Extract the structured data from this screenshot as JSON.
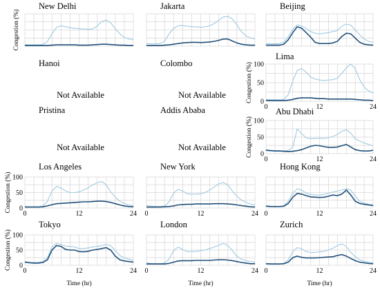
{
  "colors": {
    "series_light": "#9ecae1",
    "series_dark": "#1f4e79",
    "grid": "#d4d4d4"
  },
  "axis_labels": {
    "y": "Congestion (%)",
    "x": "Time (hr)"
  },
  "not_available_text": "Not Available",
  "chart_data": [
    {
      "type": "line",
      "title": "New Delhi",
      "xlim": [
        0,
        24
      ],
      "ylim": [
        0,
        100
      ],
      "grid": true,
      "x_ticks": [
        0,
        12,
        24
      ],
      "y_ticks": [
        0,
        50,
        100
      ],
      "show_x_ticks": false,
      "show_y_ticks": false,
      "ylabel": "Congestion (%)",
      "x": [
        0,
        1,
        2,
        3,
        4,
        5,
        6,
        7,
        8,
        9,
        10,
        11,
        12,
        13,
        14,
        15,
        16,
        17,
        18,
        19,
        20,
        21,
        22,
        23,
        24
      ],
      "series": [
        {
          "values": [
            5,
            4,
            4,
            4,
            5,
            15,
            38,
            58,
            63,
            60,
            57,
            55,
            54,
            53,
            52,
            53,
            62,
            76,
            80,
            72,
            54,
            38,
            27,
            22,
            20
          ]
        },
        {
          "values": [
            2,
            2,
            2,
            2,
            2,
            2,
            3,
            4,
            4,
            4,
            4,
            4,
            3,
            3,
            3,
            4,
            5,
            6,
            6,
            5,
            4,
            3,
            3,
            2,
            2
          ]
        }
      ]
    },
    {
      "type": "line",
      "title": "Jakarta",
      "xlim": [
        0,
        24
      ],
      "ylim": [
        0,
        100
      ],
      "grid": true,
      "x_ticks": [
        0,
        12,
        24
      ],
      "y_ticks": [
        0,
        50,
        100
      ],
      "show_x_ticks": false,
      "show_y_ticks": false,
      "ylabel": "",
      "x": [
        0,
        1,
        2,
        3,
        4,
        5,
        6,
        7,
        8,
        9,
        10,
        11,
        12,
        13,
        14,
        15,
        16,
        17,
        18,
        19,
        20,
        21,
        22,
        23,
        24
      ],
      "series": [
        {
          "values": [
            8,
            7,
            7,
            8,
            15,
            38,
            55,
            63,
            64,
            62,
            60,
            60,
            58,
            60,
            63,
            70,
            80,
            90,
            92,
            84,
            66,
            45,
            32,
            25,
            23
          ]
        },
        {
          "values": [
            2,
            2,
            2,
            2,
            3,
            4,
            6,
            8,
            10,
            11,
            12,
            12,
            11,
            12,
            13,
            15,
            18,
            22,
            22,
            16,
            10,
            6,
            4,
            3,
            3
          ]
        }
      ]
    },
    {
      "type": "line",
      "title": "Beijing",
      "xlim": [
        0,
        24
      ],
      "ylim": [
        0,
        100
      ],
      "grid": true,
      "x_ticks": [
        0,
        12,
        24
      ],
      "y_ticks": [
        0,
        50,
        100
      ],
      "show_x_ticks": false,
      "show_y_ticks": false,
      "ylabel": "",
      "x": [
        0,
        1,
        2,
        3,
        4,
        5,
        6,
        7,
        8,
        9,
        10,
        11,
        12,
        13,
        14,
        15,
        16,
        17,
        18,
        19,
        20,
        21,
        22,
        23,
        24
      ],
      "series": [
        {
          "values": [
            8,
            7,
            7,
            8,
            12,
            30,
            52,
            66,
            62,
            55,
            45,
            40,
            38,
            40,
            42,
            45,
            48,
            62,
            68,
            65,
            50,
            35,
            22,
            15,
            12
          ]
        },
        {
          "values": [
            3,
            3,
            3,
            3,
            6,
            20,
            42,
            60,
            55,
            42,
            28,
            12,
            8,
            8,
            8,
            10,
            15,
            30,
            40,
            38,
            25,
            12,
            6,
            4,
            3
          ]
        }
      ]
    },
    {
      "type": "line",
      "title": "Hanoi",
      "status": "Not Available"
    },
    {
      "type": "line",
      "title": "Colombo",
      "status": "Not Available"
    },
    {
      "type": "line",
      "title": "Lima",
      "xlim": [
        0,
        24
      ],
      "ylim": [
        0,
        100
      ],
      "grid": true,
      "x_ticks": [
        0,
        12,
        24
      ],
      "y_ticks": [
        0,
        50,
        100
      ],
      "show_x_ticks": true,
      "show_y_ticks": true,
      "ylabel": "Congestion (%)",
      "x": [
        0,
        1,
        2,
        3,
        4,
        5,
        6,
        7,
        8,
        9,
        10,
        11,
        12,
        13,
        14,
        15,
        16,
        17,
        18,
        19,
        20,
        21,
        22,
        23,
        24
      ],
      "series": [
        {
          "values": [
            5,
            4,
            4,
            4,
            5,
            18,
            55,
            83,
            88,
            78,
            65,
            60,
            57,
            56,
            57,
            58,
            62,
            75,
            90,
            100,
            88,
            58,
            38,
            28,
            22
          ]
        },
        {
          "values": [
            2,
            2,
            2,
            2,
            2,
            3,
            5,
            8,
            9,
            9,
            9,
            8,
            7,
            7,
            6,
            6,
            6,
            6,
            6,
            6,
            5,
            4,
            3,
            3,
            2
          ]
        }
      ]
    },
    {
      "type": "line",
      "title": "Pristina",
      "status": "Not Available"
    },
    {
      "type": "line",
      "title": "Addis Ababa",
      "status": "Not Available"
    },
    {
      "type": "line",
      "title": "Abu Dhabi",
      "xlim": [
        0,
        24
      ],
      "ylim": [
        0,
        100
      ],
      "grid": true,
      "x_ticks": [
        0,
        12,
        24
      ],
      "y_ticks": [
        0,
        50,
        100
      ],
      "show_x_ticks": true,
      "show_y_ticks": true,
      "ylabel": "Congestion (%)",
      "x": [
        0,
        1,
        2,
        3,
        4,
        5,
        6,
        7,
        8,
        9,
        10,
        11,
        12,
        13,
        14,
        15,
        16,
        17,
        18,
        19,
        20,
        21,
        22,
        23,
        24
      ],
      "series": [
        {
          "values": [
            12,
            10,
            9,
            9,
            8,
            10,
            20,
            75,
            60,
            48,
            45,
            46,
            47,
            46,
            48,
            52,
            58,
            68,
            72,
            62,
            45,
            38,
            32,
            28,
            24
          ]
        },
        {
          "values": [
            10,
            9,
            8,
            8,
            7,
            6,
            7,
            9,
            12,
            17,
            22,
            25,
            24,
            21,
            19,
            19,
            20,
            24,
            28,
            20,
            12,
            9,
            8,
            8,
            10
          ]
        }
      ]
    },
    {
      "type": "line",
      "title": "Los Angeles",
      "xlim": [
        0,
        24
      ],
      "ylim": [
        0,
        100
      ],
      "grid": true,
      "x_ticks": [
        0,
        12,
        24
      ],
      "y_ticks": [
        0,
        50,
        100
      ],
      "show_x_ticks": true,
      "show_y_ticks": true,
      "ylabel": "Congestion (%)",
      "x": [
        0,
        1,
        2,
        3,
        4,
        5,
        6,
        7,
        8,
        9,
        10,
        11,
        12,
        13,
        14,
        15,
        16,
        17,
        18,
        19,
        20,
        21,
        22,
        23,
        24
      ],
      "series": [
        {
          "values": [
            5,
            4,
            4,
            4,
            6,
            22,
            55,
            70,
            65,
            55,
            50,
            50,
            52,
            58,
            65,
            75,
            82,
            86,
            75,
            52,
            35,
            22,
            15,
            10,
            8
          ]
        },
        {
          "values": [
            3,
            3,
            3,
            3,
            4,
            7,
            11,
            14,
            15,
            16,
            17,
            18,
            19,
            20,
            20,
            21,
            22,
            22,
            21,
            18,
            14,
            10,
            7,
            5,
            4
          ]
        }
      ]
    },
    {
      "type": "line",
      "title": "New York",
      "xlim": [
        0,
        24
      ],
      "ylim": [
        0,
        100
      ],
      "grid": true,
      "x_ticks": [
        0,
        12,
        24
      ],
      "y_ticks": [
        0,
        50,
        100
      ],
      "show_x_ticks": true,
      "show_y_ticks": false,
      "ylabel": "",
      "x": [
        0,
        1,
        2,
        3,
        4,
        5,
        6,
        7,
        8,
        9,
        10,
        11,
        12,
        13,
        14,
        15,
        16,
        17,
        18,
        19,
        20,
        21,
        22,
        23,
        24
      ],
      "series": [
        {
          "values": [
            8,
            6,
            5,
            5,
            6,
            20,
            48,
            60,
            55,
            46,
            45,
            45,
            46,
            50,
            58,
            68,
            78,
            82,
            75,
            55,
            38,
            26,
            18,
            13,
            10
          ]
        },
        {
          "values": [
            3,
            3,
            3,
            3,
            4,
            5,
            7,
            10,
            11,
            12,
            12,
            13,
            13,
            13,
            13,
            14,
            14,
            14,
            13,
            12,
            10,
            8,
            6,
            4,
            3
          ]
        }
      ]
    },
    {
      "type": "line",
      "title": "Hong Kong",
      "xlim": [
        0,
        24
      ],
      "ylim": [
        0,
        100
      ],
      "grid": true,
      "x_ticks": [
        0,
        12,
        24
      ],
      "y_ticks": [
        0,
        50,
        100
      ],
      "show_x_ticks": true,
      "show_y_ticks": false,
      "ylabel": "",
      "x": [
        0,
        1,
        2,
        3,
        4,
        5,
        6,
        7,
        8,
        9,
        10,
        11,
        12,
        13,
        14,
        15,
        16,
        17,
        18,
        19,
        20,
        21,
        22,
        23,
        24
      ],
      "series": [
        {
          "values": [
            8,
            6,
            5,
            5,
            7,
            22,
            48,
            62,
            58,
            48,
            44,
            42,
            42,
            44,
            48,
            52,
            55,
            58,
            62,
            58,
            38,
            22,
            16,
            12,
            10
          ]
        },
        {
          "values": [
            6,
            5,
            5,
            5,
            6,
            15,
            35,
            47,
            45,
            40,
            36,
            35,
            34,
            35,
            38,
            42,
            40,
            45,
            58,
            42,
            22,
            15,
            12,
            10,
            8
          ]
        }
      ]
    },
    {
      "type": "line",
      "title": "Tokyo",
      "xlim": [
        0,
        24
      ],
      "ylim": [
        0,
        100
      ],
      "grid": true,
      "x_ticks": [
        0,
        12,
        24
      ],
      "y_ticks": [
        0,
        50,
        100
      ],
      "show_x_ticks": true,
      "show_y_ticks": true,
      "ylabel": "Congestion (%)",
      "x": [
        0,
        1,
        2,
        3,
        4,
        5,
        6,
        7,
        8,
        9,
        10,
        11,
        12,
        13,
        14,
        15,
        16,
        17,
        18,
        19,
        20,
        21,
        22,
        23,
        24
      ],
      "series": [
        {
          "values": [
            12,
            10,
            9,
            9,
            12,
            25,
            60,
            72,
            68,
            63,
            62,
            60,
            55,
            55,
            57,
            60,
            62,
            65,
            68,
            65,
            48,
            32,
            24,
            20,
            16
          ]
        },
        {
          "values": [
            10,
            8,
            7,
            7,
            9,
            18,
            50,
            65,
            62,
            52,
            50,
            50,
            45,
            44,
            46,
            50,
            52,
            55,
            58,
            50,
            30,
            18,
            14,
            12,
            10
          ]
        }
      ]
    },
    {
      "type": "line",
      "title": "London",
      "xlim": [
        0,
        24
      ],
      "ylim": [
        0,
        100
      ],
      "grid": true,
      "x_ticks": [
        0,
        12,
        24
      ],
      "y_ticks": [
        0,
        50,
        100
      ],
      "show_x_ticks": true,
      "show_y_ticks": false,
      "ylabel": "",
      "x": [
        0,
        1,
        2,
        3,
        4,
        5,
        6,
        7,
        8,
        9,
        10,
        11,
        12,
        13,
        14,
        15,
        16,
        17,
        18,
        19,
        20,
        21,
        22,
        23,
        24
      ],
      "series": [
        {
          "values": [
            8,
            6,
            5,
            5,
            7,
            20,
            48,
            60,
            52,
            45,
            45,
            46,
            48,
            50,
            55,
            60,
            66,
            72,
            65,
            48,
            30,
            20,
            15,
            12,
            10
          ]
        },
        {
          "values": [
            4,
            4,
            4,
            4,
            4,
            6,
            10,
            14,
            15,
            15,
            15,
            16,
            16,
            16,
            16,
            17,
            18,
            18,
            17,
            15,
            12,
            9,
            7,
            5,
            5
          ]
        }
      ]
    },
    {
      "type": "line",
      "title": "Zurich",
      "xlim": [
        0,
        24
      ],
      "ylim": [
        0,
        100
      ],
      "grid": true,
      "x_ticks": [
        0,
        12,
        24
      ],
      "y_ticks": [
        0,
        50,
        100
      ],
      "show_x_ticks": true,
      "show_y_ticks": false,
      "ylabel": "",
      "x": [
        0,
        1,
        2,
        3,
        4,
        5,
        6,
        7,
        8,
        9,
        10,
        11,
        12,
        13,
        14,
        15,
        16,
        17,
        18,
        19,
        20,
        21,
        22,
        23,
        24
      ],
      "series": [
        {
          "values": [
            6,
            5,
            4,
            4,
            6,
            18,
            45,
            58,
            54,
            45,
            42,
            42,
            44,
            46,
            50,
            56,
            65,
            70,
            62,
            42,
            28,
            18,
            13,
            10,
            8
          ]
        },
        {
          "values": [
            5,
            4,
            4,
            4,
            5,
            10,
            25,
            30,
            26,
            24,
            24,
            24,
            25,
            26,
            27,
            28,
            32,
            35,
            30,
            22,
            15,
            10,
            8,
            6,
            5
          ]
        }
      ]
    }
  ]
}
